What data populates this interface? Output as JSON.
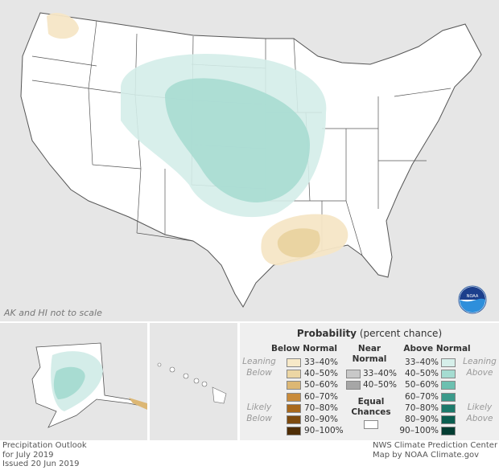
{
  "map": {
    "note": "AK and HI not to scale",
    "logo_text": "NOAA",
    "colors": {
      "background": "#e6e6e6",
      "land": "#ffffff",
      "above_33_40": "#d4ede9",
      "above_40_50": "#a8dcd2",
      "below_33_40": "#f5e6c6",
      "below_40_50": "#e9d3a0"
    }
  },
  "legend": {
    "title_bold": "Probability",
    "title_rest": "(percent chance)",
    "below": {
      "heading": "Below Normal",
      "leaning": "Leaning Below",
      "likely": "Likely Below",
      "items": [
        {
          "label": "33–40%",
          "color": "#f7e9c8"
        },
        {
          "label": "40–50%",
          "color": "#ecd6a4"
        },
        {
          "label": "50–60%",
          "color": "#dcb774"
        },
        {
          "label": "60–70%",
          "color": "#c98b3a"
        },
        {
          "label": "70–80%",
          "color": "#a8681c"
        },
        {
          "label": "80–90%",
          "color": "#7d4a0e"
        },
        {
          "label": "90–100%",
          "color": "#4f2d05"
        }
      ]
    },
    "near": {
      "heading": "Near Normal",
      "items": [
        {
          "label": "33–40%",
          "color": "#c8c8c8"
        },
        {
          "label": "40–50%",
          "color": "#a6a6a6"
        }
      ]
    },
    "equal": {
      "heading": "Equal Chances",
      "color": "#ffffff"
    },
    "above": {
      "heading": "Above Normal",
      "leaning": "Leaning Above",
      "likely": "Likely Above",
      "items": [
        {
          "label": "33–40%",
          "color": "#d6efea"
        },
        {
          "label": "40–50%",
          "color": "#a5dcd1"
        },
        {
          "label": "50–60%",
          "color": "#6cc0b0"
        },
        {
          "label": "60–70%",
          "color": "#3b9a8b"
        },
        {
          "label": "70–80%",
          "color": "#1c7a6b"
        },
        {
          "label": "80–90%",
          "color": "#0b5e50"
        },
        {
          "label": "90–100%",
          "color": "#033d32"
        }
      ]
    }
  },
  "footer": {
    "line1": "Precipitation Outlook",
    "line2": "for July 2019",
    "line3": "Issued 20 Jun 2019",
    "credit1": "NWS Climate Prediction Center",
    "credit2": "Map by NOAA Climate.gov"
  }
}
